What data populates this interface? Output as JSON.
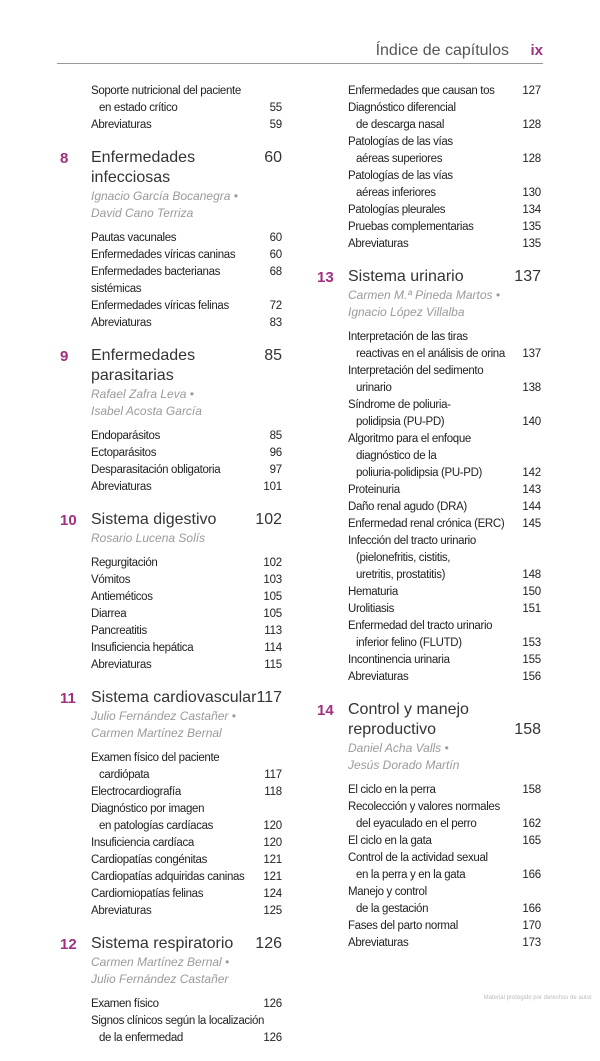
{
  "header": {
    "title": "Índice de capítulos",
    "page": "ix"
  },
  "accent": "#a0307f",
  "watermark": "Material protegido por derechos de autor",
  "columns": [
    [
      {
        "entries": [
          {
            "lines": [
              "Soporte nutricional del paciente",
              "en estado crítico"
            ],
            "page": "55"
          },
          {
            "lines": [
              "Abreviaturas"
            ],
            "page": "59"
          }
        ]
      },
      {
        "num": "8",
        "title": [
          "Enfermedades infecciosas"
        ],
        "page": "60",
        "authors": [
          "Ignacio García Bocanegra  •",
          "David Cano Terriza"
        ],
        "entries": [
          {
            "lines": [
              "Pautas vacunales"
            ],
            "page": "60"
          },
          {
            "lines": [
              "Enfermedades víricas caninas"
            ],
            "page": "60"
          },
          {
            "lines": [
              "Enfermedades bacterianas sistémicas"
            ],
            "page": "68"
          },
          {
            "lines": [
              "Enfermedades víricas felinas"
            ],
            "page": "72"
          },
          {
            "lines": [
              "Abreviaturas"
            ],
            "page": "83"
          }
        ]
      },
      {
        "num": "9",
        "title": [
          "Enfermedades parasitarias"
        ],
        "page": "85",
        "authors": [
          "Rafael Zafra Leva  •",
          "Isabel Acosta García"
        ],
        "entries": [
          {
            "lines": [
              "Endoparásitos"
            ],
            "page": "85"
          },
          {
            "lines": [
              "Ectoparásitos"
            ],
            "page": "96"
          },
          {
            "lines": [
              "Desparasitación obligatoria"
            ],
            "page": "97"
          },
          {
            "lines": [
              "Abreviaturas"
            ],
            "page": "101"
          }
        ]
      },
      {
        "num": "10",
        "title": [
          "Sistema digestivo"
        ],
        "page": "102",
        "authors": [
          "Rosario Lucena Solís"
        ],
        "entries": [
          {
            "lines": [
              "Regurgitación"
            ],
            "page": "102"
          },
          {
            "lines": [
              "Vómitos"
            ],
            "page": "103"
          },
          {
            "lines": [
              "Antieméticos"
            ],
            "page": "105"
          },
          {
            "lines": [
              "Diarrea"
            ],
            "page": "105"
          },
          {
            "lines": [
              "Pancreatitis"
            ],
            "page": "113"
          },
          {
            "lines": [
              "Insuficiencia hepática"
            ],
            "page": "114"
          },
          {
            "lines": [
              "Abreviaturas"
            ],
            "page": "115"
          }
        ]
      },
      {
        "num": "11",
        "title": [
          "Sistema cardiovascular"
        ],
        "page": "117",
        "authors": [
          "Julio Fernández Castañer  •",
          "Carmen Martínez Bernal"
        ],
        "entries": [
          {
            "lines": [
              "Examen físico del paciente",
              "cardiópata"
            ],
            "page": "117"
          },
          {
            "lines": [
              "Electrocardiografía"
            ],
            "page": "118"
          },
          {
            "lines": [
              "Diagnóstico por imagen",
              "en patologías cardíacas"
            ],
            "page": "120"
          },
          {
            "lines": [
              "Insuficiencia cardíaca"
            ],
            "page": "120"
          },
          {
            "lines": [
              "Cardiopatías congénitas"
            ],
            "page": "121"
          },
          {
            "lines": [
              "Cardiopatías adquiridas caninas"
            ],
            "page": "121"
          },
          {
            "lines": [
              "Cardiomiopatías felinas"
            ],
            "page": "124"
          },
          {
            "lines": [
              "Abreviaturas"
            ],
            "page": "125"
          }
        ]
      },
      {
        "num": "12",
        "title": [
          "Sistema respiratorio"
        ],
        "page": "126",
        "authors": [
          "Carmen Martínez Bernal  •",
          "Julio Fernández Castañer"
        ],
        "entries": [
          {
            "lines": [
              "Examen físico"
            ],
            "page": "126"
          },
          {
            "lines": [
              "Signos clínicos según la localización",
              "de la enfermedad"
            ],
            "page": "126"
          }
        ]
      }
    ],
    [
      {
        "entries": [
          {
            "lines": [
              "Enfermedades que causan tos"
            ],
            "page": "127"
          },
          {
            "lines": [
              "Diagnóstico diferencial",
              "de descarga nasal"
            ],
            "page": "128"
          },
          {
            "lines": [
              "Patologías de las vías",
              "aéreas superiores"
            ],
            "page": "128"
          },
          {
            "lines": [
              "Patologías de las vías",
              "aéreas inferiores"
            ],
            "page": "130"
          },
          {
            "lines": [
              "Patologías pleurales"
            ],
            "page": "134"
          },
          {
            "lines": [
              "Pruebas complementarias"
            ],
            "page": "135"
          },
          {
            "lines": [
              "Abreviaturas"
            ],
            "page": "135"
          }
        ]
      },
      {
        "num": "13",
        "title": [
          "Sistema urinario"
        ],
        "page": "137",
        "authors": [
          "Carmen M.ª Pineda Martos  •",
          "Ignacio López Villalba"
        ],
        "entries": [
          {
            "lines": [
              "Interpretación de las tiras",
              "reactivas en el análisis de orina"
            ],
            "page": "137"
          },
          {
            "lines": [
              "Interpretación del sedimento",
              "urinario"
            ],
            "page": "138"
          },
          {
            "lines": [
              "Síndrome de poliuria-",
              "polidipsia (PU-PD)"
            ],
            "page": "140"
          },
          {
            "lines": [
              "Algoritmo para el enfoque",
              "diagnóstico de la",
              "poliuria-polidipsia (PU-PD)"
            ],
            "page": "142"
          },
          {
            "lines": [
              "Proteinuria"
            ],
            "page": "143"
          },
          {
            "lines": [
              "Daño renal agudo (DRA)"
            ],
            "page": "144"
          },
          {
            "lines": [
              "Enfermedad renal crónica (ERC)"
            ],
            "page": "145"
          },
          {
            "lines": [
              "Infección del tracto urinario",
              "(pielonefritis, cistitis,",
              "uretritis, prostatitis)"
            ],
            "page": "148"
          },
          {
            "lines": [
              "Hematuria"
            ],
            "page": "150"
          },
          {
            "lines": [
              "Urolitiasis"
            ],
            "page": "151"
          },
          {
            "lines": [
              "Enfermedad del tracto urinario",
              "inferior felino (FLUTD)"
            ],
            "page": "153"
          },
          {
            "lines": [
              "Incontinencia urinaria"
            ],
            "page": "155"
          },
          {
            "lines": [
              "Abreviaturas"
            ],
            "page": "156"
          }
        ]
      },
      {
        "num": "14",
        "title": [
          "Control y manejo",
          "reproductivo"
        ],
        "page": "158",
        "authors": [
          "Daniel Acha Valls  •",
          "Jesús Dorado Martín"
        ],
        "entries": [
          {
            "lines": [
              "El ciclo en la perra"
            ],
            "page": "158"
          },
          {
            "lines": [
              "Recolección y valores normales",
              "del eyaculado en el perro"
            ],
            "page": "162"
          },
          {
            "lines": [
              "El ciclo en la gata"
            ],
            "page": "165"
          },
          {
            "lines": [
              "Control de la actividad sexual",
              "en la perra y en la gata"
            ],
            "page": "166"
          },
          {
            "lines": [
              "Manejo y control",
              "de la gestación"
            ],
            "page": "166"
          },
          {
            "lines": [
              "Fases del parto normal"
            ],
            "page": "170"
          },
          {
            "lines": [
              "Abreviaturas"
            ],
            "page": "173"
          }
        ]
      }
    ]
  ]
}
